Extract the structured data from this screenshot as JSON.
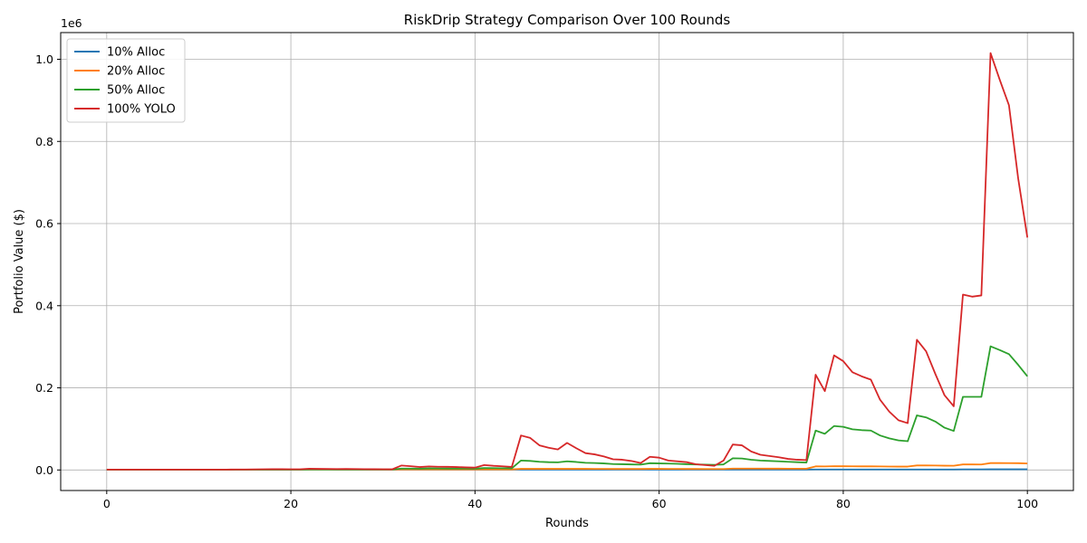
{
  "chart_data": {
    "type": "line",
    "title": "RiskDrip Strategy Comparison Over 100 Rounds",
    "xlabel": "Rounds",
    "ylabel": "Portfolio Value ($)",
    "y_offset_label": "1e6",
    "xlim": [
      -5,
      105
    ],
    "ylim": [
      -50000,
      1065000
    ],
    "x_ticks": [
      0,
      20,
      40,
      60,
      80,
      100
    ],
    "x_tick_labels": [
      "0",
      "20",
      "40",
      "60",
      "80",
      "100"
    ],
    "y_ticks": [
      0,
      200000,
      400000,
      600000,
      800000,
      1000000
    ],
    "y_tick_labels": [
      "0.0",
      "0.2",
      "0.4",
      "0.6",
      "0.8",
      "1.0"
    ],
    "grid": true,
    "legend_position": "top-left",
    "x": [
      0,
      1,
      2,
      3,
      4,
      5,
      6,
      7,
      8,
      9,
      10,
      11,
      12,
      13,
      14,
      15,
      16,
      17,
      18,
      19,
      20,
      21,
      22,
      23,
      24,
      25,
      26,
      27,
      28,
      29,
      30,
      31,
      32,
      33,
      34,
      35,
      36,
      37,
      38,
      39,
      40,
      41,
      42,
      43,
      44,
      45,
      46,
      47,
      48,
      49,
      50,
      51,
      52,
      53,
      54,
      55,
      56,
      57,
      58,
      59,
      60,
      61,
      62,
      63,
      64,
      65,
      66,
      67,
      68,
      69,
      70,
      71,
      72,
      73,
      74,
      75,
      76,
      77,
      78,
      79,
      80,
      81,
      82,
      83,
      84,
      85,
      86,
      87,
      88,
      89,
      90,
      91,
      92,
      93,
      94,
      95,
      96,
      97,
      98,
      99,
      100
    ],
    "series": [
      {
        "name": "10% Alloc",
        "color": "#1f77b4",
        "values": [
          1000,
          1000,
          1000,
          1000,
          1000,
          1000,
          1000,
          1000,
          1000,
          1000,
          1000,
          1000,
          1000,
          1000,
          1000,
          1000,
          1000,
          1000,
          1000,
          1000,
          1000,
          1000,
          1000,
          1000,
          1000,
          1000,
          1000,
          1000,
          1000,
          1000,
          1000,
          1000,
          1000,
          1000,
          1000,
          1000,
          1000,
          1000,
          1000,
          1000,
          1000,
          1000,
          1000,
          1000,
          1000,
          1100,
          1100,
          1100,
          1100,
          1100,
          1100,
          1100,
          1100,
          1100,
          1100,
          1100,
          1100,
          1100,
          1100,
          1100,
          1100,
          1100,
          1100,
          1100,
          1100,
          1100,
          1100,
          1100,
          1100,
          1100,
          1100,
          1100,
          1100,
          1100,
          1100,
          1100,
          1100,
          1200,
          1200,
          1200,
          1200,
          1200,
          1200,
          1200,
          1200,
          1200,
          1200,
          1200,
          1300,
          1300,
          1300,
          1300,
          1300,
          1500,
          1500,
          1500,
          1600,
          1600,
          1600,
          1600,
          1600
        ]
      },
      {
        "name": "20% Alloc",
        "color": "#ff7f0e",
        "values": [
          1000,
          1000,
          1000,
          1000,
          1000,
          1000,
          1000,
          1000,
          1000,
          1000,
          1000,
          1000,
          1000,
          1000,
          1000,
          1000,
          1000,
          1000,
          1000,
          1000,
          1000,
          1000,
          1100,
          1100,
          1100,
          1100,
          1100,
          1100,
          1100,
          1100,
          1100,
          1100,
          1300,
          1300,
          1300,
          1300,
          1300,
          1300,
          1300,
          1300,
          1300,
          1400,
          1400,
          1400,
          1400,
          2800,
          2800,
          2700,
          2700,
          2700,
          2800,
          2700,
          2700,
          2600,
          2600,
          2500,
          2500,
          2500,
          2500,
          2700,
          2700,
          2600,
          2600,
          2500,
          2500,
          2400,
          2400,
          2400,
          3500,
          3500,
          3400,
          3400,
          3300,
          3300,
          3200,
          3200,
          3200,
          8800,
          8700,
          9200,
          9100,
          8900,
          8800,
          8800,
          8600,
          8400,
          8300,
          8300,
          11000,
          11000,
          10800,
          10500,
          10300,
          13500,
          13500,
          13400,
          16800,
          16800,
          16700,
          16500,
          15800
        ]
      },
      {
        "name": "50% Alloc",
        "color": "#2ca02c",
        "values": [
          1000,
          1000,
          1000,
          1000,
          1000,
          1000,
          1000,
          1000,
          1000,
          1000,
          1000,
          1000,
          1000,
          1000,
          1000,
          1000,
          1000,
          1000,
          1000,
          1000,
          1000,
          1000,
          1500,
          1500,
          1500,
          1400,
          1400,
          1400,
          1300,
          1300,
          1300,
          1300,
          3500,
          3400,
          3300,
          3800,
          3700,
          3600,
          3500,
          3400,
          3300,
          4700,
          4500,
          4300,
          4100,
          23000,
          22000,
          20000,
          19000,
          18500,
          21000,
          19500,
          17500,
          17000,
          16000,
          14500,
          14000,
          13500,
          13000,
          16500,
          16000,
          15500,
          15000,
          14000,
          13500,
          13000,
          12500,
          13500,
          28500,
          28000,
          25000,
          23000,
          22000,
          21000,
          20000,
          19000,
          18000,
          96000,
          88000,
          107000,
          105000,
          99000,
          97000,
          96000,
          84000,
          77000,
          72000,
          70000,
          133000,
          128000,
          118000,
          103000,
          95000,
          178000,
          178000,
          178000,
          301000,
          292000,
          282000,
          256000,
          228000
        ]
      },
      {
        "name": "100% YOLO",
        "color": "#d62728",
        "values": [
          1000,
          1000,
          1000,
          1000,
          1000,
          1000,
          1000,
          1000,
          1000,
          1000,
          1000,
          1000,
          1000,
          1000,
          1200,
          1300,
          1500,
          1800,
          1900,
          1900,
          1800,
          1800,
          3200,
          2800,
          2600,
          2400,
          2500,
          2300,
          2000,
          1900,
          1800,
          1600,
          10800,
          9200,
          7200,
          8600,
          7800,
          7700,
          7200,
          6300,
          5800,
          12000,
          10200,
          9000,
          7500,
          84000,
          78000,
          60000,
          54000,
          50000,
          66000,
          53000,
          41000,
          38000,
          33000,
          26000,
          25000,
          22000,
          17000,
          32000,
          30000,
          23000,
          21000,
          19000,
          14000,
          12000,
          10000,
          23000,
          62000,
          60000,
          45000,
          37000,
          34000,
          31000,
          27000,
          25000,
          24000,
          232000,
          192000,
          279000,
          265000,
          238000,
          228000,
          220000,
          171000,
          142000,
          121000,
          114000,
          317000,
          289000,
          234000,
          182000,
          155000,
          427000,
          422000,
          425000,
          1015000,
          950000,
          888000,
          710000,
          566000
        ]
      }
    ]
  }
}
